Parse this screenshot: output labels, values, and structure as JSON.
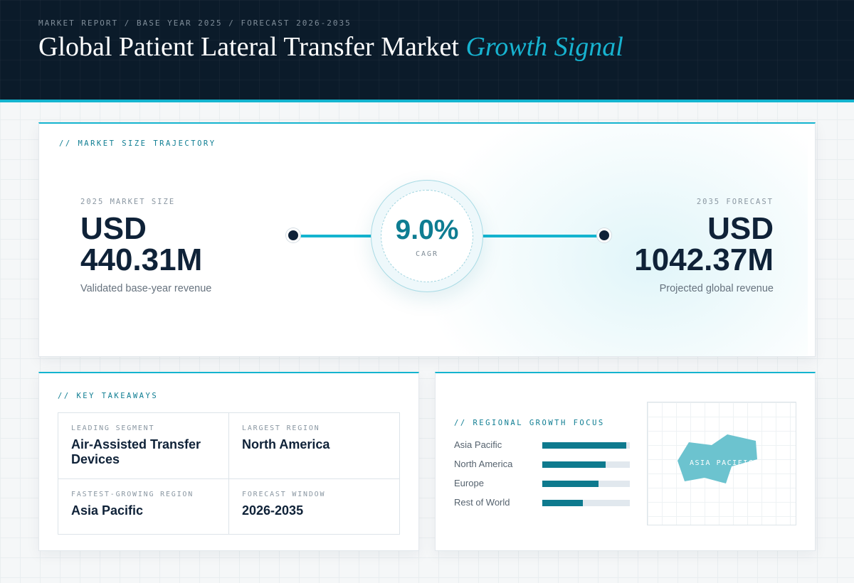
{
  "header": {
    "eyebrow": "MARKET REPORT / BASE YEAR 2025 / FORECAST 2026-2035",
    "title_main": "Global Patient Lateral Transfer Market",
    "title_accent": "Growth Signal"
  },
  "trajectory": {
    "section_label": "// MARKET SIZE TRAJECTORY",
    "start": {
      "caption": "2025 MARKET SIZE",
      "currency": "USD",
      "value": "440.31M",
      "subtitle": "Validated base-year revenue"
    },
    "end": {
      "caption": "2035 FORECAST",
      "currency": "USD",
      "value": "1042.37M",
      "subtitle": "Projected global revenue"
    },
    "cagr": {
      "value": "9.0%",
      "label": "CAGR"
    }
  },
  "takeaways": {
    "section_label": "// KEY TAKEAWAYS",
    "items": [
      {
        "caption": "LEADING SEGMENT",
        "value": "Air-Assisted Transfer Devices"
      },
      {
        "caption": "LARGEST REGION",
        "value": "North America"
      },
      {
        "caption": "FASTEST-GROWING REGION",
        "value": "Asia Pacific"
      },
      {
        "caption": "FORECAST WINDOW",
        "value": "2026-2035"
      }
    ]
  },
  "regional": {
    "section_label": "// REGIONAL GROWTH FOCUS",
    "bars": [
      {
        "label": "Asia Pacific",
        "level_pct": 96
      },
      {
        "label": "North America",
        "level_pct": 72
      },
      {
        "label": "Europe",
        "level_pct": 64
      },
      {
        "label": "Rest of World",
        "level_pct": 46
      }
    ],
    "map_label": "ASIA PACIFIC",
    "colors": {
      "bar_fill": "#0e7a8e",
      "bar_track": "#e1e8ee",
      "map_shape": "#6cc3cf"
    }
  },
  "colors": {
    "accent": "#14b4cf",
    "navy": "#0b1b2a",
    "teal": "#0e7d92"
  }
}
